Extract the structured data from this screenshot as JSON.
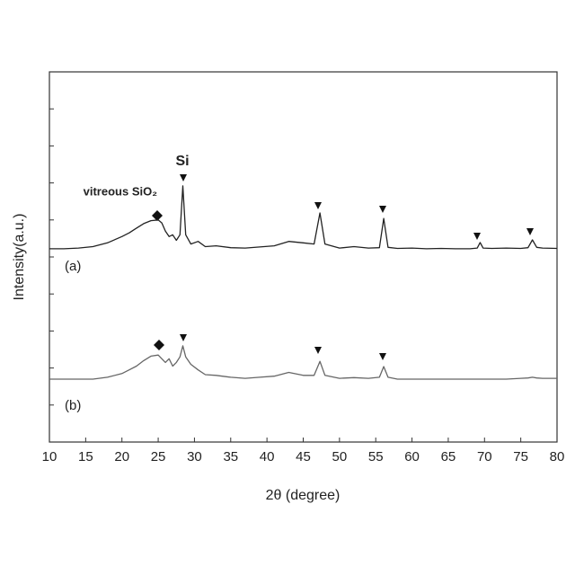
{
  "chart_data": {
    "type": "line",
    "x_label": "2θ (degree)",
    "y_label": "Intensity(a.u.)",
    "annotations": [
      "vitreous SiO₂",
      "Si",
      "(a)",
      "(b)"
    ],
    "x": [
      10,
      12,
      14,
      16,
      18,
      20,
      21,
      22,
      23,
      24,
      25,
      25.5,
      26,
      26.5,
      27,
      27.5,
      28,
      28.4,
      28.8,
      29.5,
      30.5,
      31.5,
      33,
      35,
      37,
      39,
      41,
      43,
      45,
      46.5,
      47.3,
      48,
      50,
      52,
      54,
      55.5,
      56.1,
      56.7,
      58,
      60,
      62,
      64,
      66,
      68,
      69,
      69.4,
      69.8,
      71,
      73,
      75,
      76,
      76.6,
      77.2,
      78,
      80
    ],
    "series": [
      {
        "name": "(a)",
        "color": "#222222",
        "values": [
          5.22,
          5.22,
          5.24,
          5.28,
          5.38,
          5.55,
          5.65,
          5.78,
          5.9,
          5.98,
          6.0,
          5.92,
          5.7,
          5.55,
          5.6,
          5.45,
          5.6,
          6.92,
          5.6,
          5.35,
          5.42,
          5.28,
          5.3,
          5.25,
          5.24,
          5.27,
          5.3,
          5.42,
          5.38,
          5.35,
          6.19,
          5.35,
          5.24,
          5.28,
          5.24,
          5.25,
          6.04,
          5.26,
          5.23,
          5.24,
          5.22,
          5.23,
          5.22,
          5.22,
          5.24,
          5.39,
          5.24,
          5.23,
          5.24,
          5.23,
          5.25,
          5.46,
          5.26,
          5.24,
          5.23
        ]
      },
      {
        "name": "(b)",
        "color": "#666666",
        "values": [
          1.7,
          1.7,
          1.7,
          1.7,
          1.75,
          1.85,
          1.95,
          2.05,
          2.2,
          2.32,
          2.35,
          2.25,
          2.15,
          2.25,
          2.05,
          2.15,
          2.3,
          2.6,
          2.3,
          2.1,
          1.95,
          1.82,
          1.8,
          1.75,
          1.72,
          1.75,
          1.78,
          1.88,
          1.8,
          1.8,
          2.18,
          1.8,
          1.72,
          1.74,
          1.72,
          1.75,
          2.04,
          1.75,
          1.7,
          1.7,
          1.7,
          1.7,
          1.7,
          1.7,
          1.7,
          1.7,
          1.7,
          1.7,
          1.7,
          1.72,
          1.73,
          1.75,
          1.73,
          1.72,
          1.72
        ]
      }
    ],
    "xlim": [
      10,
      80
    ],
    "xticks": [
      10,
      15,
      20,
      25,
      30,
      35,
      40,
      45,
      50,
      55,
      60,
      65,
      70,
      75,
      80
    ],
    "ylim": [
      0,
      10
    ],
    "yticks": [
      1,
      2,
      3,
      4,
      5,
      6,
      7,
      8,
      9
    ]
  }
}
